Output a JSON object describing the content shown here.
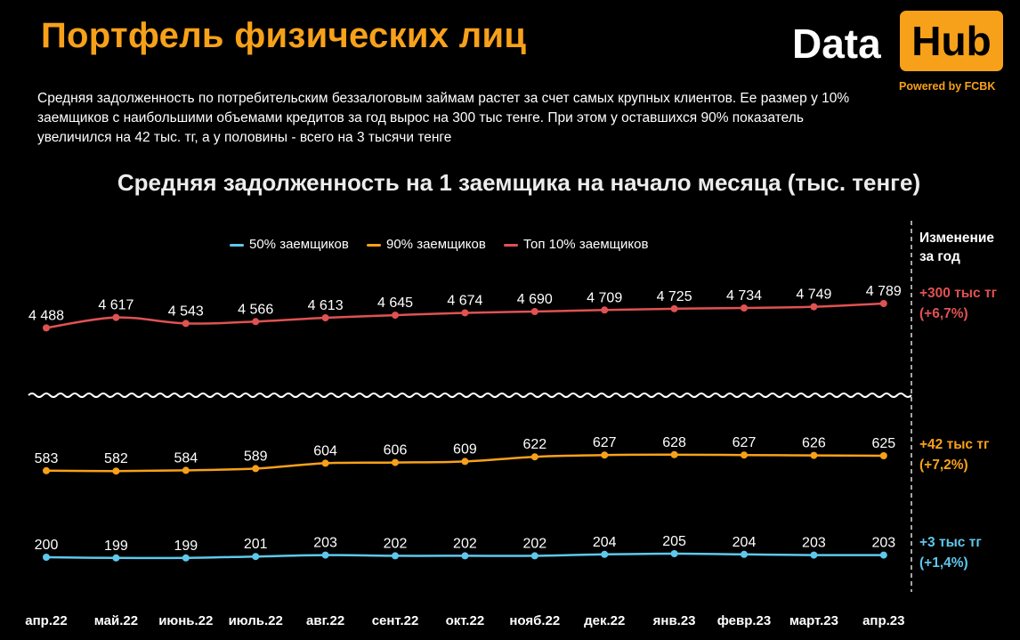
{
  "header": {
    "title": "Портфель физических лиц",
    "description": "Средняя задолженность по потребительским беззалоговым займам растет за счет самых крупных клиентов. Ее размер у 10% заемщиков с наибольшими объемами кредитов за год вырос на 300 тыс тенге. При этом у оставшихся 90% показатель увеличился на 42 тыс. тг, а у половины - всего на 3 тысячи тенге"
  },
  "logo": {
    "data": "Data",
    "hub": "Hub",
    "powered": "Powered by FCBK"
  },
  "change": {
    "header_line1": "Изменение",
    "header_line2": "за год",
    "top10": [
      "+300 тыс тг",
      "(+6,7%)"
    ],
    "p90": [
      "+42 тыс тг",
      "(+7,2%)"
    ],
    "p50": [
      "+3 тыс тг",
      "(+1,4%)"
    ]
  },
  "colors": {
    "p50": "#5ec8ec",
    "p90": "#f7a11a",
    "top10": "#e05252",
    "accent": "#f7a11a"
  },
  "chart_data": {
    "type": "line",
    "title": "Средняя задолженность на 1 заемщика на начало месяца (тыс. тенге)",
    "categories": [
      "апр.22",
      "май.22",
      "июнь.22",
      "июль.22",
      "авг.22",
      "сент.22",
      "окт.22",
      "нояб.22",
      "дек.22",
      "янв.23",
      "февр.23",
      "март.23",
      "апр.23"
    ],
    "series": [
      {
        "name": "50% заемщиков",
        "color": "#5ec8ec",
        "values": [
          200,
          199,
          199,
          201,
          203,
          202,
          202,
          202,
          204,
          205,
          204,
          203,
          203
        ]
      },
      {
        "name": "90% заемщиков",
        "color": "#f7a11a",
        "values": [
          583,
          582,
          584,
          589,
          604,
          606,
          609,
          622,
          627,
          628,
          627,
          626,
          625
        ]
      },
      {
        "name": "Топ 10% заемщиков",
        "color": "#e05252",
        "values": [
          4488,
          4617,
          4543,
          4566,
          4613,
          4645,
          4674,
          4690,
          4709,
          4725,
          4734,
          4749,
          4789
        ]
      }
    ],
    "value_labels": {
      "p50": [
        "200",
        "199",
        "199",
        "201",
        "203",
        "202",
        "202",
        "202",
        "204",
        "205",
        "204",
        "203",
        "203"
      ],
      "p90": [
        "583",
        "582",
        "584",
        "589",
        "604",
        "606",
        "609",
        "622",
        "627",
        "628",
        "627",
        "626",
        "625"
      ],
      "top10": [
        "4 488",
        "4 617",
        "4 543",
        "4 566",
        "4 613",
        "4 645",
        "4 674",
        "4 690",
        "4 709",
        "4 725",
        "4 734",
        "4 749",
        "4 789"
      ]
    },
    "axis_break": true,
    "grid": false,
    "legend_position": "top"
  }
}
